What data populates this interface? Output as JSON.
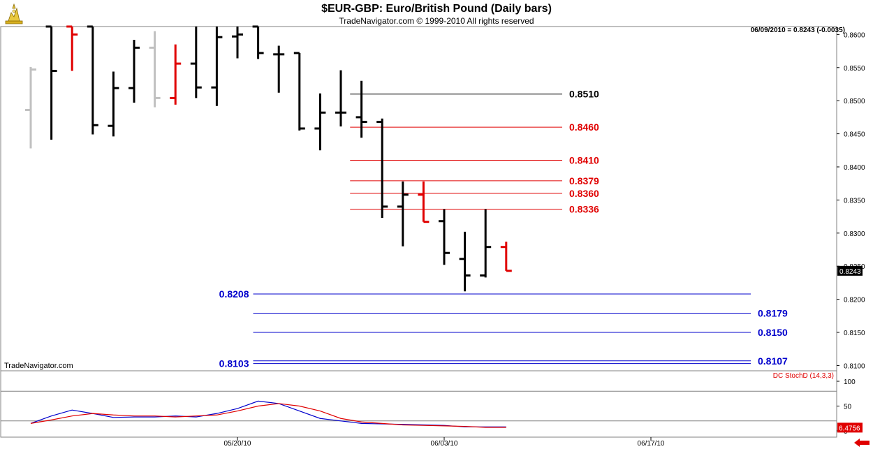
{
  "header": {
    "title": "$EUR-GBP:  Euro/British Pound  (Daily bars)",
    "copyright": "TradeNavigator.com © 1999-2010 All rights reserved",
    "quote": "06/09/2010 = 0.8243 (-0.0035)",
    "watermark": "TradeNavigator.com",
    "study_label": "DC StochD (14,3,3)"
  },
  "colors": {
    "up_bar": "#000000",
    "down_bar": "#e00000",
    "faded_bar": "#c0c0c0",
    "fib_black": "#000000",
    "fib_red": "#e00000",
    "fib_blue": "#0000cc",
    "stoch_k": "#0000cc",
    "stoch_d": "#e00000",
    "grid": "#808080",
    "current_value_bg": "#000000",
    "indicator_value_bg": "#e00000",
    "nav_arrow": "#e00000"
  },
  "chart_data": [
    {
      "type": "ohlc",
      "title": "$EUR-GBP:  Euro/British Pound  (Daily bars)",
      "y_ticks": [
        "0.8600",
        "0.8550",
        "0.8500",
        "0.8450",
        "0.8400",
        "0.8350",
        "0.8300",
        "0.8250",
        "0.8200",
        "0.8150",
        "0.8100"
      ],
      "ylim": [
        0.8092,
        0.8612
      ],
      "x_labels": [
        "05/20/10",
        "06/03/10",
        "06/17/10"
      ],
      "current_value": "0.8243",
      "bars": [
        {
          "o": 0.8486,
          "h": 0.8551,
          "l": 0.8428,
          "c": 0.8547,
          "tone": "faded"
        },
        {
          "o": 0.8612,
          "h": 0.8612,
          "l": 0.8441,
          "c": 0.8545,
          "tone": "up"
        },
        {
          "o": 0.8612,
          "h": 0.8612,
          "l": 0.8545,
          "c": 0.86,
          "tone": "down"
        },
        {
          "o": 0.8612,
          "h": 0.8612,
          "l": 0.8449,
          "c": 0.8463,
          "tone": "up"
        },
        {
          "o": 0.8462,
          "h": 0.8544,
          "l": 0.8446,
          "c": 0.8519,
          "tone": "up"
        },
        {
          "o": 0.8519,
          "h": 0.8592,
          "l": 0.8497,
          "c": 0.858,
          "tone": "up"
        },
        {
          "o": 0.858,
          "h": 0.8605,
          "l": 0.849,
          "c": 0.8504,
          "tone": "faded"
        },
        {
          "o": 0.8504,
          "h": 0.8585,
          "l": 0.8494,
          "c": 0.8556,
          "tone": "down"
        },
        {
          "o": 0.8556,
          "h": 0.8612,
          "l": 0.8504,
          "c": 0.852,
          "tone": "up"
        },
        {
          "o": 0.852,
          "h": 0.8612,
          "l": 0.8492,
          "c": 0.8596,
          "tone": "up"
        },
        {
          "o": 0.8597,
          "h": 0.8612,
          "l": 0.8564,
          "c": 0.86,
          "tone": "up"
        },
        {
          "o": 0.8612,
          "h": 0.8612,
          "l": 0.8563,
          "c": 0.8572,
          "tone": "up"
        },
        {
          "o": 0.857,
          "h": 0.8583,
          "l": 0.8512,
          "c": 0.857,
          "tone": "up"
        },
        {
          "o": 0.8572,
          "h": 0.8572,
          "l": 0.8455,
          "c": 0.8458,
          "tone": "up"
        },
        {
          "o": 0.8458,
          "h": 0.8511,
          "l": 0.8425,
          "c": 0.8482,
          "tone": "up"
        },
        {
          "o": 0.8482,
          "h": 0.8546,
          "l": 0.8461,
          "c": 0.8482,
          "tone": "up"
        },
        {
          "o": 0.8475,
          "h": 0.853,
          "l": 0.8444,
          "c": 0.8468,
          "tone": "up"
        },
        {
          "o": 0.8468,
          "h": 0.8473,
          "l": 0.8323,
          "c": 0.834,
          "tone": "up"
        },
        {
          "o": 0.834,
          "h": 0.8378,
          "l": 0.828,
          "c": 0.8358,
          "tone": "up"
        },
        {
          "o": 0.8358,
          "h": 0.8378,
          "l": 0.8317,
          "c": 0.8317,
          "tone": "down"
        },
        {
          "o": 0.8318,
          "h": 0.8336,
          "l": 0.8252,
          "c": 0.827,
          "tone": "up"
        },
        {
          "o": 0.8261,
          "h": 0.8302,
          "l": 0.8212,
          "c": 0.8236,
          "tone": "up"
        },
        {
          "o": 0.8236,
          "h": 0.8336,
          "l": 0.8233,
          "c": 0.8279,
          "tone": "up"
        },
        {
          "o": 0.8279,
          "h": 0.8287,
          "l": 0.8243,
          "c": 0.8243,
          "tone": "down"
        }
      ],
      "levels": [
        {
          "value": 0.851,
          "label": "0.8510",
          "color": "black",
          "x_from": 0.401,
          "x_to": 0.644,
          "label_side": "right"
        },
        {
          "value": 0.846,
          "label": "0.8460",
          "color": "red",
          "x_from": 0.401,
          "x_to": 0.644,
          "label_side": "right"
        },
        {
          "value": 0.841,
          "label": "0.8410",
          "color": "red",
          "x_from": 0.401,
          "x_to": 0.644,
          "label_side": "right"
        },
        {
          "value": 0.8379,
          "label": "0.8379",
          "color": "red",
          "x_from": 0.401,
          "x_to": 0.644,
          "label_side": "right"
        },
        {
          "value": 0.836,
          "label": "0.8360",
          "color": "red",
          "x_from": 0.401,
          "x_to": 0.644,
          "label_side": "right"
        },
        {
          "value": 0.8336,
          "label": "0.8336",
          "color": "red",
          "x_from": 0.401,
          "x_to": 0.644,
          "label_side": "right"
        },
        {
          "value": 0.8208,
          "label": "0.8208",
          "color": "blue",
          "x_from": 0.29,
          "x_to": 0.86,
          "label_side": "left"
        },
        {
          "value": 0.8179,
          "label": "0.8179",
          "color": "blue",
          "x_from": 0.29,
          "x_to": 0.86,
          "label_side": "right"
        },
        {
          "value": 0.815,
          "label": "0.8150",
          "color": "blue",
          "x_from": 0.29,
          "x_to": 0.86,
          "label_side": "right"
        },
        {
          "value": 0.8107,
          "label": "0.8107",
          "color": "blue",
          "x_from": 0.29,
          "x_to": 0.86,
          "label_side": "right"
        },
        {
          "value": 0.8103,
          "label": "0.8103",
          "color": "blue",
          "x_from": 0.29,
          "x_to": 0.86,
          "label_side": "left"
        }
      ]
    },
    {
      "type": "line",
      "title": "DC StochD (14,3,3)",
      "y_ticks": [
        "100",
        "50",
        "0"
      ],
      "ylim": [
        0,
        100
      ],
      "reference_lines": [
        80,
        20
      ],
      "current_value": "6.4756",
      "series": [
        {
          "color": "blue",
          "values": [
            15,
            30,
            42,
            35,
            27,
            28,
            28,
            30,
            28,
            35,
            45,
            60,
            55,
            40,
            25,
            20,
            15,
            14,
            13,
            12,
            11,
            8,
            8,
            8
          ]
        },
        {
          "color": "red",
          "values": [
            15,
            22,
            30,
            35,
            32,
            30,
            30,
            28,
            30,
            32,
            40,
            50,
            55,
            50,
            40,
            25,
            18,
            15,
            12,
            11,
            10,
            9,
            7,
            7
          ]
        }
      ]
    }
  ]
}
